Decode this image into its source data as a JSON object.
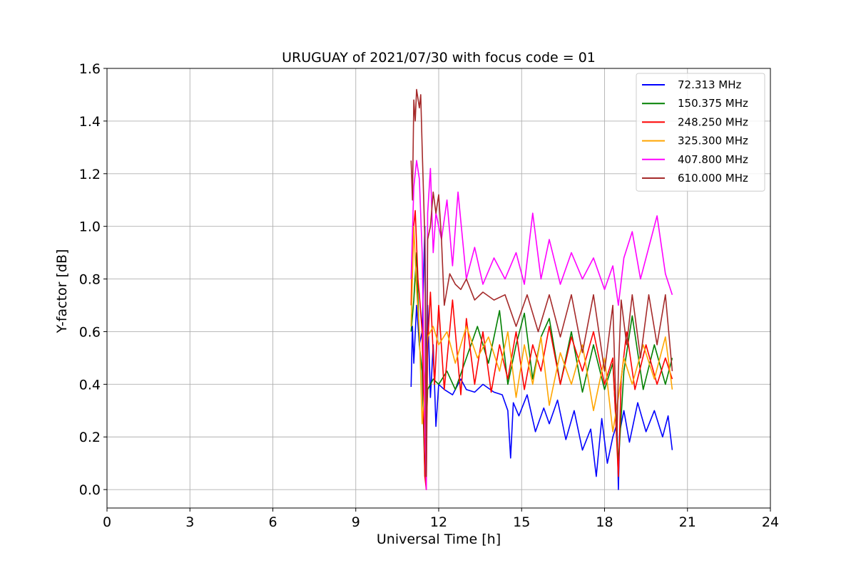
{
  "chart_data": {
    "type": "line",
    "title": "URUGUAY of 2021/07/30 with focus code = 01",
    "xlabel": "Universal Time [h]",
    "ylabel": "Y-factor [dB]",
    "xlim": [
      0,
      24
    ],
    "ylim": [
      -0.07,
      1.6
    ],
    "xticks": [
      0,
      3,
      6,
      9,
      12,
      15,
      18,
      21,
      24
    ],
    "yticks": [
      0.0,
      0.2,
      0.4,
      0.6,
      0.8,
      1.0,
      1.2,
      1.4,
      1.6
    ],
    "xtick_labels": [
      "0",
      "3",
      "6",
      "9",
      "12",
      "15",
      "18",
      "21",
      "24"
    ],
    "ytick_labels": [
      "0.0",
      "0.2",
      "0.4",
      "0.6",
      "0.8",
      "1.0",
      "1.2",
      "1.4",
      "1.6"
    ],
    "grid": true,
    "legend_position": "top-right",
    "series": [
      {
        "name": " 72.313 MHz",
        "color": "#0000ff",
        "x": [
          11.0,
          11.05,
          11.1,
          11.2,
          11.3,
          11.4,
          11.5,
          11.55,
          11.6,
          11.7,
          11.8,
          11.9,
          12.0,
          12.2,
          12.5,
          12.8,
          13.0,
          13.3,
          13.6,
          14.0,
          14.3,
          14.5,
          14.6,
          14.7,
          14.9,
          15.2,
          15.5,
          15.8,
          16.0,
          16.3,
          16.6,
          16.9,
          17.2,
          17.5,
          17.7,
          17.9,
          18.1,
          18.3,
          18.45,
          18.5,
          18.55,
          18.7,
          18.9,
          19.2,
          19.5,
          19.8,
          20.1,
          20.3,
          20.45
        ],
        "y": [
          0.39,
          0.62,
          0.48,
          0.7,
          0.55,
          0.6,
          1.0,
          0.38,
          0.7,
          0.35,
          0.55,
          0.24,
          0.4,
          0.38,
          0.36,
          0.42,
          0.38,
          0.37,
          0.4,
          0.37,
          0.36,
          0.3,
          0.12,
          0.33,
          0.28,
          0.36,
          0.22,
          0.31,
          0.25,
          0.34,
          0.19,
          0.3,
          0.15,
          0.23,
          0.05,
          0.27,
          0.1,
          0.2,
          0.25,
          0.0,
          0.22,
          0.3,
          0.18,
          0.33,
          0.22,
          0.3,
          0.2,
          0.28,
          0.15
        ]
      },
      {
        "name": "150.375 MHz",
        "color": "#008000",
        "x": [
          11.0,
          11.1,
          11.2,
          11.3,
          11.4,
          11.5,
          11.6,
          11.8,
          12.0,
          12.3,
          12.6,
          13.0,
          13.4,
          13.8,
          14.2,
          14.5,
          14.8,
          15.1,
          15.4,
          15.7,
          16.0,
          16.4,
          16.8,
          17.2,
          17.6,
          18.0,
          18.3,
          18.5,
          18.7,
          19.0,
          19.4,
          19.8,
          20.2,
          20.45
        ],
        "y": [
          0.6,
          0.72,
          0.9,
          0.55,
          0.45,
          0.05,
          0.38,
          0.42,
          0.4,
          0.45,
          0.38,
          0.5,
          0.62,
          0.48,
          0.68,
          0.4,
          0.55,
          0.67,
          0.42,
          0.58,
          0.65,
          0.4,
          0.6,
          0.37,
          0.55,
          0.38,
          0.48,
          0.1,
          0.45,
          0.66,
          0.38,
          0.55,
          0.4,
          0.5
        ]
      },
      {
        "name": "248.250 MHz",
        "color": "#ff0000",
        "x": [
          11.0,
          11.05,
          11.15,
          11.25,
          11.3,
          11.4,
          11.5,
          11.55,
          11.6,
          11.7,
          11.85,
          12.0,
          12.2,
          12.5,
          12.8,
          13.0,
          13.3,
          13.6,
          13.9,
          14.2,
          14.5,
          14.8,
          15.1,
          15.4,
          15.7,
          16.0,
          16.4,
          16.8,
          17.2,
          17.6,
          18.0,
          18.3,
          18.5,
          18.6,
          18.8,
          19.1,
          19.5,
          19.9,
          20.2,
          20.45
        ],
        "y": [
          0.7,
          0.95,
          1.06,
          0.8,
          0.74,
          0.6,
          0.05,
          0.0,
          0.55,
          0.75,
          0.4,
          0.7,
          0.38,
          0.72,
          0.36,
          0.65,
          0.4,
          0.6,
          0.37,
          0.55,
          0.42,
          0.6,
          0.38,
          0.55,
          0.45,
          0.62,
          0.4,
          0.58,
          0.45,
          0.6,
          0.4,
          0.5,
          0.05,
          0.42,
          0.6,
          0.38,
          0.55,
          0.4,
          0.5,
          0.42
        ]
      },
      {
        "name": "325.300 MHz",
        "color": "#ffa500",
        "x": [
          11.0,
          11.1,
          11.2,
          11.3,
          11.4,
          11.5,
          11.6,
          11.8,
          12.0,
          12.3,
          12.6,
          13.0,
          13.4,
          13.8,
          14.2,
          14.5,
          14.8,
          15.1,
          15.4,
          15.7,
          16.0,
          16.4,
          16.8,
          17.2,
          17.6,
          18.0,
          18.3,
          18.5,
          18.7,
          19.0,
          19.4,
          19.8,
          20.2,
          20.45
        ],
        "y": [
          0.62,
          1.0,
          0.76,
          0.6,
          0.25,
          0.4,
          0.58,
          0.62,
          0.55,
          0.6,
          0.48,
          0.62,
          0.5,
          0.58,
          0.45,
          0.6,
          0.35,
          0.55,
          0.4,
          0.58,
          0.32,
          0.52,
          0.4,
          0.55,
          0.3,
          0.5,
          0.22,
          0.35,
          0.5,
          0.4,
          0.55,
          0.42,
          0.58,
          0.38
        ]
      },
      {
        "name": "407.800 MHz",
        "color": "#ff00ff",
        "x": [
          11.0,
          11.1,
          11.2,
          11.3,
          11.4,
          11.5,
          11.55,
          11.6,
          11.7,
          11.8,
          11.9,
          12.1,
          12.3,
          12.5,
          12.7,
          13.0,
          13.3,
          13.6,
          14.0,
          14.4,
          14.8,
          15.1,
          15.4,
          15.7,
          16.0,
          16.4,
          16.8,
          17.2,
          17.6,
          18.0,
          18.3,
          18.5,
          18.7,
          19.0,
          19.3,
          19.6,
          19.9,
          20.2,
          20.45
        ],
        "y": [
          0.8,
          1.15,
          1.25,
          1.18,
          0.9,
          0.3,
          0.0,
          1.05,
          1.22,
          0.9,
          1.05,
          0.95,
          1.1,
          0.85,
          1.13,
          0.8,
          0.92,
          0.78,
          0.88,
          0.8,
          0.9,
          0.78,
          1.05,
          0.8,
          0.95,
          0.78,
          0.9,
          0.8,
          0.88,
          0.76,
          0.85,
          0.7,
          0.88,
          0.98,
          0.8,
          0.92,
          1.04,
          0.82,
          0.74
        ]
      },
      {
        "name": "610.000 MHz",
        "color": "#a52a2a",
        "x": [
          11.0,
          11.05,
          11.1,
          11.15,
          11.2,
          11.3,
          11.35,
          11.4,
          11.5,
          11.55,
          11.6,
          11.7,
          11.8,
          11.9,
          12.0,
          12.1,
          12.2,
          12.4,
          12.6,
          12.8,
          13.0,
          13.3,
          13.6,
          14.0,
          14.4,
          14.8,
          15.2,
          15.6,
          16.0,
          16.4,
          16.8,
          17.2,
          17.6,
          18.0,
          18.3,
          18.45,
          18.5,
          18.6,
          18.8,
          19.0,
          19.3,
          19.6,
          19.9,
          20.2,
          20.45
        ],
        "y": [
          1.25,
          1.1,
          1.48,
          1.4,
          1.52,
          1.45,
          1.5,
          1.3,
          0.95,
          0.05,
          0.95,
          1.0,
          1.13,
          1.05,
          1.12,
          0.95,
          0.7,
          0.82,
          0.78,
          0.76,
          0.8,
          0.72,
          0.75,
          0.72,
          0.74,
          0.62,
          0.74,
          0.6,
          0.74,
          0.58,
          0.74,
          0.52,
          0.74,
          0.45,
          0.7,
          0.2,
          0.45,
          0.72,
          0.55,
          0.74,
          0.5,
          0.74,
          0.55,
          0.74,
          0.45
        ]
      }
    ]
  }
}
